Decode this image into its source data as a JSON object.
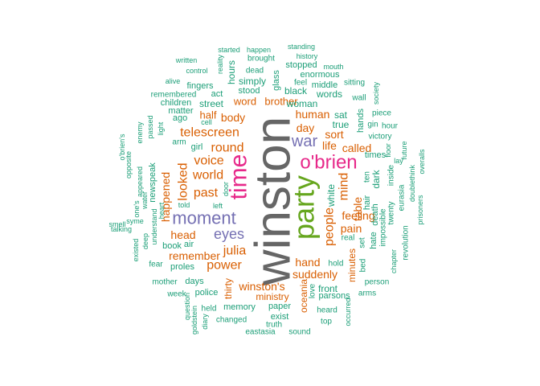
{
  "palette": {
    "teal": "#1b9e77",
    "orange": "#d95f02",
    "purple": "#7570b3",
    "magenta": "#e7298a",
    "green": "#66a61e",
    "gray": "#666666"
  },
  "words": [
    {
      "text": "winston",
      "color": "gray"
    },
    {
      "text": "party",
      "color": "green"
    },
    {
      "text": "o'brien",
      "color": "magenta"
    },
    {
      "text": "time",
      "color": "magenta"
    },
    {
      "text": "moment",
      "color": "purple"
    },
    {
      "text": "war",
      "color": "purple"
    },
    {
      "text": "eyes",
      "color": "purple"
    },
    {
      "text": "telescreen",
      "color": "orange"
    },
    {
      "text": "round",
      "color": "orange"
    },
    {
      "text": "voice",
      "color": "orange"
    },
    {
      "text": "world",
      "color": "orange"
    },
    {
      "text": "past",
      "color": "orange"
    },
    {
      "text": "looked",
      "color": "orange"
    },
    {
      "text": "head",
      "color": "orange"
    },
    {
      "text": "julia",
      "color": "orange"
    },
    {
      "text": "power",
      "color": "orange"
    },
    {
      "text": "remember",
      "color": "orange"
    },
    {
      "text": "hand",
      "color": "orange"
    },
    {
      "text": "suddenly",
      "color": "orange"
    },
    {
      "text": "people",
      "color": "orange"
    },
    {
      "text": "life",
      "color": "orange"
    },
    {
      "text": "day",
      "color": "orange"
    },
    {
      "text": "human",
      "color": "orange"
    },
    {
      "text": "sort",
      "color": "orange"
    },
    {
      "text": "called",
      "color": "orange"
    },
    {
      "text": "mind",
      "color": "orange"
    },
    {
      "text": "feeling",
      "color": "orange"
    },
    {
      "text": "pain",
      "color": "orange"
    },
    {
      "text": "table",
      "color": "orange"
    },
    {
      "text": "minutes",
      "color": "orange"
    },
    {
      "text": "oceania",
      "color": "orange"
    },
    {
      "text": "winston's",
      "color": "orange"
    },
    {
      "text": "ministry",
      "color": "orange"
    },
    {
      "text": "thirty",
      "color": "orange"
    },
    {
      "text": "body",
      "color": "orange"
    },
    {
      "text": "half",
      "color": "orange"
    },
    {
      "text": "word",
      "color": "orange"
    },
    {
      "text": "brother",
      "color": "orange"
    },
    {
      "text": "happened",
      "color": "orange"
    },
    {
      "text": "black",
      "color": "teal"
    },
    {
      "text": "woman",
      "color": "teal"
    },
    {
      "text": "words",
      "color": "teal"
    },
    {
      "text": "hours",
      "color": "teal"
    },
    {
      "text": "simply",
      "color": "teal"
    },
    {
      "text": "stood",
      "color": "teal"
    },
    {
      "text": "street",
      "color": "teal"
    },
    {
      "text": "act",
      "color": "teal"
    },
    {
      "text": "glass",
      "color": "teal"
    },
    {
      "text": "true",
      "color": "teal"
    },
    {
      "text": "sat",
      "color": "teal"
    },
    {
      "text": "hands",
      "color": "teal"
    },
    {
      "text": "white",
      "color": "teal"
    },
    {
      "text": "dark",
      "color": "teal"
    },
    {
      "text": "times",
      "color": "teal"
    },
    {
      "text": "hair",
      "color": "teal"
    },
    {
      "text": "ten",
      "color": "teal"
    },
    {
      "text": "gin",
      "color": "teal"
    },
    {
      "text": "hour",
      "color": "teal"
    },
    {
      "text": "victory",
      "color": "teal"
    },
    {
      "text": "piece",
      "color": "teal"
    },
    {
      "text": "wall",
      "color": "teal"
    },
    {
      "text": "sitting",
      "color": "teal"
    },
    {
      "text": "society",
      "color": "teal"
    },
    {
      "text": "floor",
      "color": "teal"
    },
    {
      "text": "inside",
      "color": "teal"
    },
    {
      "text": "lay",
      "color": "teal"
    },
    {
      "text": "future",
      "color": "teal"
    },
    {
      "text": "overalls",
      "color": "teal"
    },
    {
      "text": "doublethink",
      "color": "teal"
    },
    {
      "text": "eurasia",
      "color": "teal"
    },
    {
      "text": "prisoners",
      "color": "teal"
    },
    {
      "text": "twenty",
      "color": "teal"
    },
    {
      "text": "revolution",
      "color": "teal"
    },
    {
      "text": "chapter",
      "color": "teal"
    },
    {
      "text": "impossible",
      "color": "teal"
    },
    {
      "text": "death",
      "color": "teal"
    },
    {
      "text": "hate",
      "color": "teal"
    },
    {
      "text": "set",
      "color": "teal"
    },
    {
      "text": "bed",
      "color": "teal"
    },
    {
      "text": "real",
      "color": "teal"
    },
    {
      "text": "person",
      "color": "teal"
    },
    {
      "text": "arms",
      "color": "teal"
    },
    {
      "text": "hold",
      "color": "teal"
    },
    {
      "text": "love",
      "color": "teal"
    },
    {
      "text": "front",
      "color": "teal"
    },
    {
      "text": "parsons",
      "color": "teal"
    },
    {
      "text": "heard",
      "color": "teal"
    },
    {
      "text": "top",
      "color": "teal"
    },
    {
      "text": "occurred",
      "color": "teal"
    },
    {
      "text": "sound",
      "color": "teal"
    },
    {
      "text": "truth",
      "color": "teal"
    },
    {
      "text": "exist",
      "color": "teal"
    },
    {
      "text": "paper",
      "color": "teal"
    },
    {
      "text": "eastasia",
      "color": "teal"
    },
    {
      "text": "memory",
      "color": "teal"
    },
    {
      "text": "changed",
      "color": "teal"
    },
    {
      "text": "held",
      "color": "teal"
    },
    {
      "text": "diary",
      "color": "teal"
    },
    {
      "text": "goldstein",
      "color": "teal"
    },
    {
      "text": "question",
      "color": "teal"
    },
    {
      "text": "police",
      "color": "teal"
    },
    {
      "text": "days",
      "color": "teal"
    },
    {
      "text": "week",
      "color": "teal"
    },
    {
      "text": "mother",
      "color": "teal"
    },
    {
      "text": "fear",
      "color": "teal"
    },
    {
      "text": "proles",
      "color": "teal"
    },
    {
      "text": "book",
      "color": "teal"
    },
    {
      "text": "air",
      "color": "teal"
    },
    {
      "text": "existed",
      "color": "teal"
    },
    {
      "text": "deep",
      "color": "teal"
    },
    {
      "text": "understand",
      "color": "teal"
    },
    {
      "text": "heart",
      "color": "teal"
    },
    {
      "text": "newspeak",
      "color": "teal"
    },
    {
      "text": "appeared",
      "color": "teal"
    },
    {
      "text": "water",
      "color": "teal"
    },
    {
      "text": "one's",
      "color": "teal"
    },
    {
      "text": "syme",
      "color": "teal"
    },
    {
      "text": "smell",
      "color": "teal"
    },
    {
      "text": "talking",
      "color": "teal"
    },
    {
      "text": "opposite",
      "color": "teal"
    },
    {
      "text": "o'brien's",
      "color": "teal"
    },
    {
      "text": "enemy",
      "color": "teal"
    },
    {
      "text": "passed",
      "color": "teal"
    },
    {
      "text": "light",
      "color": "teal"
    },
    {
      "text": "told",
      "color": "teal"
    },
    {
      "text": "left",
      "color": "teal"
    },
    {
      "text": "door",
      "color": "teal"
    },
    {
      "text": "girl",
      "color": "teal"
    },
    {
      "text": "arm",
      "color": "teal"
    },
    {
      "text": "ago",
      "color": "teal"
    },
    {
      "text": "matter",
      "color": "teal"
    },
    {
      "text": "children",
      "color": "teal"
    },
    {
      "text": "cell",
      "color": "teal"
    },
    {
      "text": "remembered",
      "color": "teal"
    },
    {
      "text": "fingers",
      "color": "teal"
    },
    {
      "text": "alive",
      "color": "teal"
    },
    {
      "text": "control",
      "color": "teal"
    },
    {
      "text": "written",
      "color": "teal"
    },
    {
      "text": "reality",
      "color": "teal"
    },
    {
      "text": "started",
      "color": "teal"
    },
    {
      "text": "happen",
      "color": "teal"
    },
    {
      "text": "brought",
      "color": "teal"
    },
    {
      "text": "dead",
      "color": "teal"
    },
    {
      "text": "standing",
      "color": "teal"
    },
    {
      "text": "history",
      "color": "teal"
    },
    {
      "text": "stopped",
      "color": "teal"
    },
    {
      "text": "mouth",
      "color": "teal"
    },
    {
      "text": "enormous",
      "color": "teal"
    },
    {
      "text": "feel",
      "color": "teal"
    },
    {
      "text": "middle",
      "color": "teal"
    }
  ]
}
